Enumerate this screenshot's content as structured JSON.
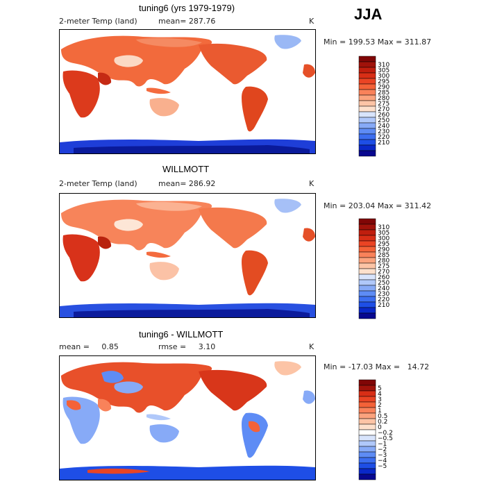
{
  "season": "JJA",
  "panels": [
    {
      "title": "tuning6 (yrs 1979-1979)",
      "variable": "2-meter Temp (land)",
      "mean_label": "mean= 287.76",
      "units": "K",
      "minmax": "Min = 199.53 Max = 311.87",
      "colors": [
        "#08088f",
        "#0a28c8",
        "#1e4ee6",
        "#3c6ef0",
        "#5e8cf5",
        "#87aaf7",
        "#b0c8fa",
        "#d8e4fc",
        "#fde0cc",
        "#fcc4a6",
        "#fba37e",
        "#f9825a",
        "#f46238",
        "#ea4424",
        "#d82e16",
        "#c01e0e",
        "#a0120a",
        "#800606"
      ],
      "levels": [
        "310",
        "305",
        "300",
        "295",
        "290",
        "285",
        "280",
        "275",
        "270",
        "260",
        "250",
        "240",
        "230",
        "220",
        "210"
      ]
    },
    {
      "title": "WILLMOTT",
      "variable": "2-meter Temp (land)",
      "mean_label": "mean= 286.92",
      "units": "K",
      "minmax": "Min = 203.04 Max = 311.42",
      "colors": [
        "#08088f",
        "#0a28c8",
        "#1e4ee6",
        "#3c6ef0",
        "#5e8cf5",
        "#87aaf7",
        "#b0c8fa",
        "#d8e4fc",
        "#fde0cc",
        "#fcc4a6",
        "#fba37e",
        "#f9825a",
        "#f46238",
        "#ea4424",
        "#d82e16",
        "#c01e0e",
        "#a0120a",
        "#800606"
      ],
      "levels": [
        "310",
        "305",
        "300",
        "295",
        "290",
        "285",
        "280",
        "275",
        "270",
        "260",
        "250",
        "240",
        "230",
        "220",
        "210"
      ]
    },
    {
      "title": "tuning6 - WILLMOTT",
      "mean_label": "mean =     0.85",
      "rmse_label": "rmse =     3.10",
      "units": "K",
      "minmax": "Min = -17.03 Max =   14.72",
      "colors": [
        "#08088f",
        "#0a28c8",
        "#1e4ee6",
        "#3c6ef0",
        "#5e8cf5",
        "#87aaf7",
        "#b0c8fa",
        "#d8e4fc",
        "#ffffff",
        "#fde0cc",
        "#fcc4a6",
        "#fba37e",
        "#f9825a",
        "#f46238",
        "#ea4424",
        "#d82e16",
        "#a0120a",
        "#800606"
      ],
      "levels": [
        "5",
        "4",
        "3",
        "2",
        "1",
        "0.5",
        "0.2",
        "0",
        "−0.2",
        "−0.5",
        "−1",
        "−2",
        "−3",
        "−4",
        "−5"
      ]
    }
  ]
}
